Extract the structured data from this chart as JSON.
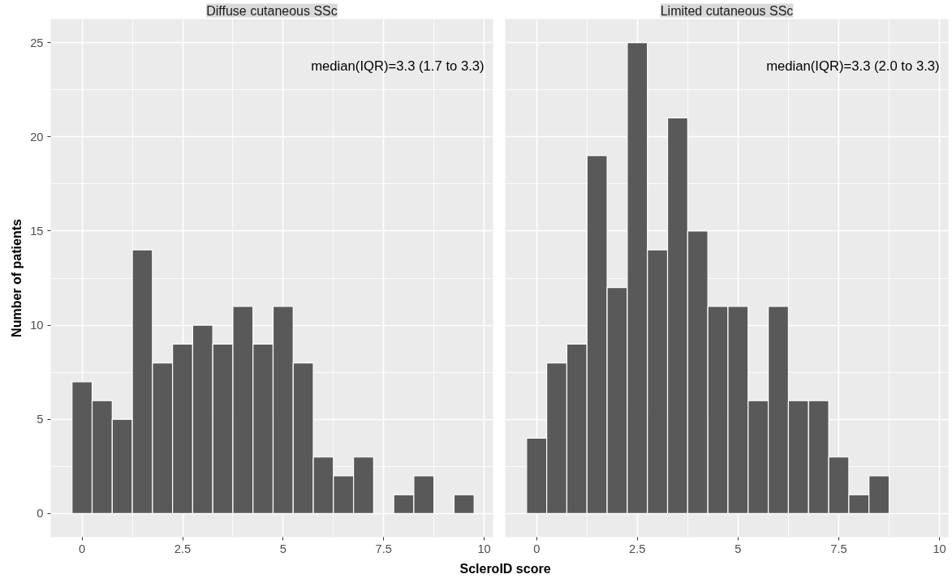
{
  "chart_data": [
    {
      "type": "histogram",
      "title": "Diffuse cutaneous SSc",
      "ylabel": "Number of patients",
      "xlabel": "ScleroID score",
      "bins": [
        -0.25,
        0.25,
        0.75,
        1.25,
        1.75,
        2.25,
        2.75,
        3.25,
        3.75,
        4.25,
        4.75,
        5.25,
        5.75,
        6.25,
        6.75,
        7.25,
        7.75,
        8.25,
        8.75,
        9.25,
        9.75
      ],
      "values": [
        7,
        6,
        5,
        14,
        8,
        9,
        10,
        9,
        11,
        9,
        11,
        8,
        3,
        2,
        3,
        0,
        1,
        2,
        0,
        1
      ],
      "color": "#595959",
      "xlim": [
        -0.78,
        10.22
      ],
      "ylim": [
        -1.25,
        26.25
      ],
      "xticks": [
        0,
        2.5,
        5,
        7.5,
        10
      ],
      "yticks": [
        0,
        5,
        10,
        15,
        20,
        25
      ],
      "grid": true,
      "annotations": [
        "median(IQR)=3.3 (1.7 to 3.3)"
      ]
    },
    {
      "type": "histogram",
      "title": "Limited cutaneous SSc",
      "bins": [
        -0.25,
        0.25,
        0.75,
        1.25,
        1.75,
        2.25,
        2.75,
        3.25,
        3.75,
        4.25,
        4.75,
        5.25,
        5.75,
        6.25,
        6.75,
        7.25,
        7.75,
        8.25,
        8.75
      ],
      "values": [
        4,
        8,
        9,
        19,
        12,
        25,
        14,
        21,
        15,
        11,
        11,
        6,
        11,
        6,
        6,
        3,
        1,
        2
      ],
      "color": "#595959",
      "xlim": [
        -0.78,
        10.22
      ],
      "ylim": [
        -1.25,
        26.25
      ],
      "xticks": [
        0,
        2.5,
        5,
        7.5,
        10
      ],
      "yticks": [
        0,
        5,
        10,
        15,
        20,
        25
      ],
      "grid": true,
      "tick_labels": "x",
      "annotations": [
        "median(IQR)=3.3 (2.0 to 3.3)"
      ]
    }
  ]
}
